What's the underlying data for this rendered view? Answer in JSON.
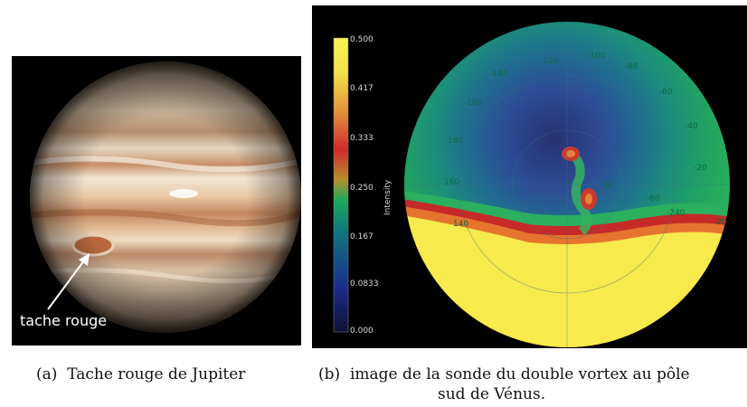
{
  "figure_a": {
    "annotation": "tache rouge",
    "caption_tag": "(a)",
    "caption_text": "Tache rouge de Jupiter"
  },
  "figure_b": {
    "caption_tag": "(b)",
    "caption_line1": "image de la sonde du double vortex au pôle",
    "caption_line2": "sud de Vénus.",
    "colorbar_title": "Intensity",
    "colorbar_ticks": [
      "0.500",
      "0.417",
      "0.333",
      "0.250",
      "0.167",
      "0.0833",
      "0.000"
    ],
    "angle_labels": [
      "-120",
      "-100",
      "-80",
      "-60",
      "-40",
      "-20",
      "-140",
      "-160",
      "180",
      "160",
      "140",
      "-0",
      "-30",
      "-60",
      "-240",
      "-20"
    ],
    "colors": {
      "background": "#000000",
      "low": "#1b2f8f",
      "mid": "#1aa36c",
      "high": "#d8262a",
      "top": "#f7f14a"
    }
  }
}
